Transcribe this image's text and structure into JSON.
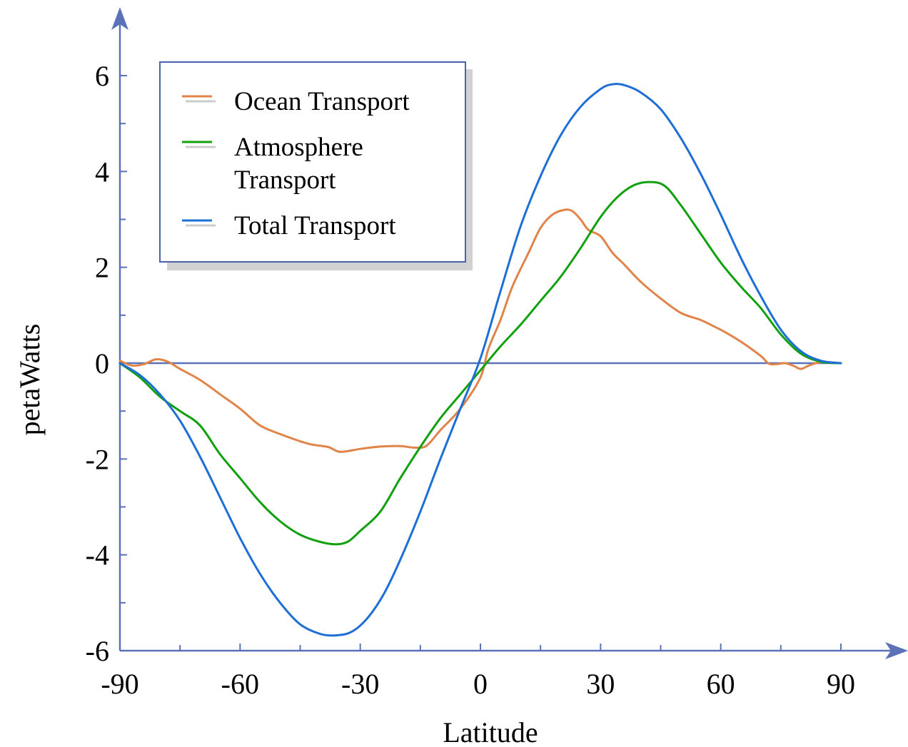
{
  "chart_data": {
    "type": "line",
    "xlabel": "Latitude",
    "ylabel": "petaWatts",
    "xlim": [
      -90,
      90
    ],
    "ylim": [
      -6,
      6
    ],
    "x_ticks": [
      -90,
      -60,
      -30,
      0,
      30,
      60,
      90
    ],
    "x_tick_labels": [
      "-90",
      "-60",
      "-30",
      "0",
      "30",
      "60",
      "90"
    ],
    "y_ticks": [
      -6,
      -4,
      -2,
      0,
      2,
      4,
      6
    ],
    "y_tick_labels": [
      "-6",
      "-4",
      "-2",
      "0",
      "2",
      "4",
      "6"
    ],
    "legend_position": "top-left",
    "series": [
      {
        "name": "Ocean Transport",
        "legend_lines": [
          "Ocean Transport"
        ],
        "color": "#e0844a",
        "points": [
          [
            -90,
            0.05
          ],
          [
            -87,
            -0.05
          ],
          [
            -84,
            -0.02
          ],
          [
            -81,
            0.08
          ],
          [
            -78,
            0.03
          ],
          [
            -75,
            -0.12
          ],
          [
            -70,
            -0.35
          ],
          [
            -65,
            -0.65
          ],
          [
            -60,
            -0.95
          ],
          [
            -55,
            -1.3
          ],
          [
            -50,
            -1.48
          ],
          [
            -45,
            -1.63
          ],
          [
            -42,
            -1.7
          ],
          [
            -38,
            -1.75
          ],
          [
            -35,
            -1.85
          ],
          [
            -30,
            -1.79
          ],
          [
            -25,
            -1.74
          ],
          [
            -20,
            -1.73
          ],
          [
            -17,
            -1.76
          ],
          [
            -14,
            -1.75
          ],
          [
            -12,
            -1.6
          ],
          [
            -10,
            -1.4
          ],
          [
            -5,
            -0.95
          ],
          [
            0,
            -0.3
          ],
          [
            2,
            0.3
          ],
          [
            5,
            0.9
          ],
          [
            8,
            1.6
          ],
          [
            12,
            2.3
          ],
          [
            15,
            2.82
          ],
          [
            18,
            3.1
          ],
          [
            21,
            3.2
          ],
          [
            23,
            3.17
          ],
          [
            25,
            3.0
          ],
          [
            27,
            2.78
          ],
          [
            30,
            2.65
          ],
          [
            33,
            2.3
          ],
          [
            36,
            2.05
          ],
          [
            40,
            1.7
          ],
          [
            45,
            1.35
          ],
          [
            50,
            1.05
          ],
          [
            55,
            0.9
          ],
          [
            58,
            0.78
          ],
          [
            61,
            0.65
          ],
          [
            65,
            0.45
          ],
          [
            70,
            0.15
          ],
          [
            72,
            -0.01
          ],
          [
            74,
            -0.02
          ],
          [
            76,
            0.0
          ],
          [
            78,
            -0.05
          ],
          [
            80,
            -0.12
          ],
          [
            82,
            -0.05
          ],
          [
            85,
            0.02
          ],
          [
            90,
            0.0
          ]
        ]
      },
      {
        "name": "Atmosphere Transport",
        "legend_lines": [
          "Atmosphere",
          "Transport"
        ],
        "color": "#11a00e",
        "points": [
          [
            -90,
            0.0
          ],
          [
            -85,
            -0.3
          ],
          [
            -80,
            -0.7
          ],
          [
            -75,
            -1.0
          ],
          [
            -70,
            -1.3
          ],
          [
            -65,
            -1.9
          ],
          [
            -60,
            -2.4
          ],
          [
            -55,
            -2.9
          ],
          [
            -50,
            -3.3
          ],
          [
            -45,
            -3.58
          ],
          [
            -40,
            -3.73
          ],
          [
            -36,
            -3.78
          ],
          [
            -33,
            -3.72
          ],
          [
            -30,
            -3.5
          ],
          [
            -25,
            -3.1
          ],
          [
            -20,
            -2.4
          ],
          [
            -15,
            -1.75
          ],
          [
            -10,
            -1.15
          ],
          [
            -5,
            -0.65
          ],
          [
            0,
            -0.15
          ],
          [
            5,
            0.35
          ],
          [
            10,
            0.8
          ],
          [
            15,
            1.3
          ],
          [
            20,
            1.8
          ],
          [
            25,
            2.4
          ],
          [
            30,
            3.05
          ],
          [
            34,
            3.45
          ],
          [
            38,
            3.7
          ],
          [
            42,
            3.78
          ],
          [
            46,
            3.7
          ],
          [
            50,
            3.3
          ],
          [
            55,
            2.7
          ],
          [
            60,
            2.1
          ],
          [
            65,
            1.6
          ],
          [
            70,
            1.15
          ],
          [
            75,
            0.6
          ],
          [
            80,
            0.2
          ],
          [
            85,
            0.03
          ],
          [
            90,
            0.0
          ]
        ]
      },
      {
        "name": "Total Transport",
        "legend_lines": [
          "Total Transport"
        ],
        "color": "#1d6fd6",
        "points": [
          [
            -90,
            0.0
          ],
          [
            -85,
            -0.25
          ],
          [
            -80,
            -0.65
          ],
          [
            -75,
            -1.2
          ],
          [
            -70,
            -1.95
          ],
          [
            -65,
            -2.8
          ],
          [
            -60,
            -3.65
          ],
          [
            -55,
            -4.4
          ],
          [
            -50,
            -5.0
          ],
          [
            -45,
            -5.45
          ],
          [
            -40,
            -5.65
          ],
          [
            -36,
            -5.68
          ],
          [
            -32,
            -5.6
          ],
          [
            -28,
            -5.3
          ],
          [
            -24,
            -4.8
          ],
          [
            -20,
            -4.1
          ],
          [
            -15,
            -3.1
          ],
          [
            -10,
            -2.0
          ],
          [
            -5,
            -0.95
          ],
          [
            0,
            0.1
          ],
          [
            5,
            1.5
          ],
          [
            10,
            2.85
          ],
          [
            15,
            3.9
          ],
          [
            20,
            4.75
          ],
          [
            25,
            5.35
          ],
          [
            30,
            5.72
          ],
          [
            33,
            5.82
          ],
          [
            36,
            5.8
          ],
          [
            40,
            5.65
          ],
          [
            45,
            5.3
          ],
          [
            50,
            4.7
          ],
          [
            55,
            3.95
          ],
          [
            60,
            3.1
          ],
          [
            65,
            2.2
          ],
          [
            70,
            1.4
          ],
          [
            75,
            0.7
          ],
          [
            80,
            0.25
          ],
          [
            85,
            0.05
          ],
          [
            90,
            0.0
          ]
        ]
      }
    ]
  }
}
